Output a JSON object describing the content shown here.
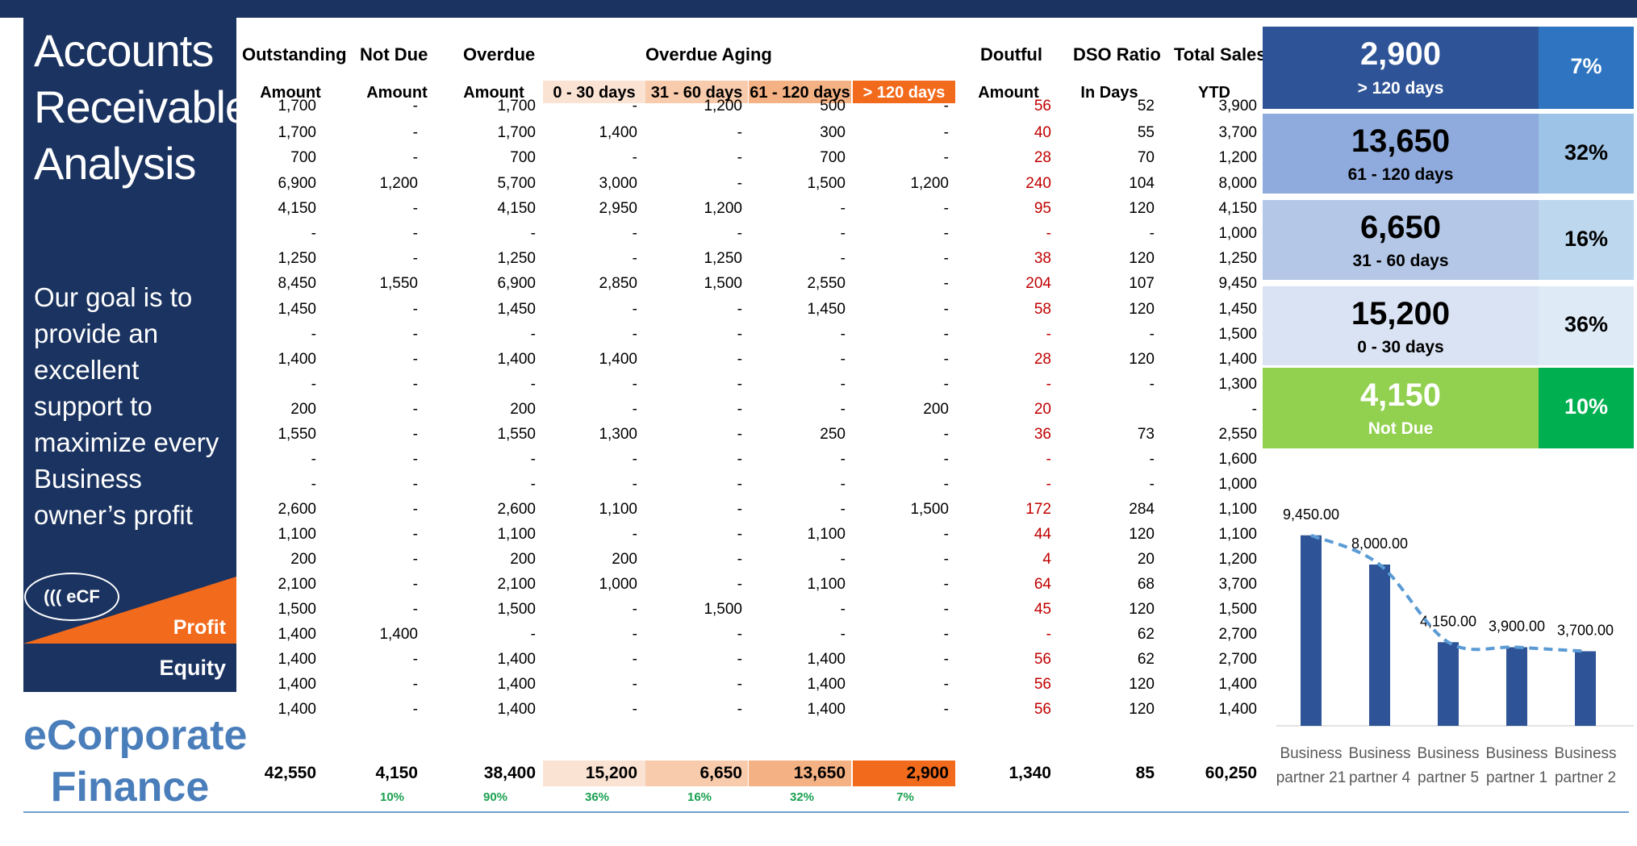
{
  "title_lines": [
    "Accounts",
    "Receivable",
    "Analysis"
  ],
  "goal_lines": [
    "Our goal is to",
    "provide an",
    "excellent",
    "support to",
    "maximize every",
    "Business",
    "owner’s profit"
  ],
  "logo_text": "((( eCF",
  "profit_label": "Profit",
  "equity_label": "Equity",
  "brand_lines": [
    "eCorporate",
    "Finance"
  ],
  "header_top": {
    "outstanding": "Outstanding",
    "not_due": "Not Due",
    "overdue": "Overdue",
    "overdue_aging": "Overdue Aging",
    "doubtful": "Doutful",
    "dso": "DSO Ratio",
    "sales": "Total Sales"
  },
  "header_sub": {
    "outstanding": "Amount",
    "not_due": "Amount",
    "overdue": "Amount",
    "a0": "0 - 30 days",
    "a1": "31 - 60 days",
    "a2": "61 - 120 days",
    "a3": "> 120 days",
    "doubtful": "Amount",
    "dso": "In Days",
    "sales": "YTD"
  },
  "aging_colors": [
    "#fbe3d4",
    "#f8cbad",
    "#f4b183",
    "#f26a1b"
  ],
  "rows": [
    [
      "1,700",
      "-",
      "1,700",
      "-",
      "1,200",
      "500",
      "-",
      "56",
      "52",
      "3,900"
    ],
    [
      "1,700",
      "-",
      "1,700",
      "1,400",
      "-",
      "300",
      "-",
      "40",
      "55",
      "3,700"
    ],
    [
      "700",
      "-",
      "700",
      "-",
      "-",
      "700",
      "-",
      "28",
      "70",
      "1,200"
    ],
    [
      "6,900",
      "1,200",
      "5,700",
      "3,000",
      "-",
      "1,500",
      "1,200",
      "240",
      "104",
      "8,000"
    ],
    [
      "4,150",
      "-",
      "4,150",
      "2,950",
      "1,200",
      "-",
      "-",
      "95",
      "120",
      "4,150"
    ],
    [
      "-",
      "-",
      "-",
      "-",
      "-",
      "-",
      "-",
      "-",
      "-",
      "1,000"
    ],
    [
      "1,250",
      "-",
      "1,250",
      "-",
      "1,250",
      "-",
      "-",
      "38",
      "120",
      "1,250"
    ],
    [
      "8,450",
      "1,550",
      "6,900",
      "2,850",
      "1,500",
      "2,550",
      "-",
      "204",
      "107",
      "9,450"
    ],
    [
      "1,450",
      "-",
      "1,450",
      "-",
      "-",
      "1,450",
      "-",
      "58",
      "120",
      "1,450"
    ],
    [
      "-",
      "-",
      "-",
      "-",
      "-",
      "-",
      "-",
      "-",
      "-",
      "1,500"
    ],
    [
      "1,400",
      "-",
      "1,400",
      "1,400",
      "-",
      "-",
      "-",
      "28",
      "120",
      "1,400"
    ],
    [
      "-",
      "-",
      "-",
      "-",
      "-",
      "-",
      "-",
      "-",
      "-",
      "1,300"
    ],
    [
      "200",
      "-",
      "200",
      "-",
      "-",
      "-",
      "200",
      "20",
      "",
      "-"
    ],
    [
      "1,550",
      "-",
      "1,550",
      "1,300",
      "-",
      "250",
      "-",
      "36",
      "73",
      "2,550"
    ],
    [
      "-",
      "-",
      "-",
      "-",
      "-",
      "-",
      "-",
      "-",
      "-",
      "1,600"
    ],
    [
      "-",
      "-",
      "-",
      "-",
      "-",
      "-",
      "-",
      "-",
      "-",
      "1,000"
    ],
    [
      "2,600",
      "-",
      "2,600",
      "1,100",
      "-",
      "-",
      "1,500",
      "172",
      "284",
      "1,100"
    ],
    [
      "1,100",
      "-",
      "1,100",
      "-",
      "-",
      "1,100",
      "-",
      "44",
      "120",
      "1,100"
    ],
    [
      "200",
      "-",
      "200",
      "200",
      "-",
      "-",
      "-",
      "4",
      "20",
      "1,200"
    ],
    [
      "2,100",
      "-",
      "2,100",
      "1,000",
      "-",
      "1,100",
      "-",
      "64",
      "68",
      "3,700"
    ],
    [
      "1,500",
      "-",
      "1,500",
      "-",
      "1,500",
      "-",
      "-",
      "45",
      "120",
      "1,500"
    ],
    [
      "1,400",
      "1,400",
      "-",
      "-",
      "-",
      "-",
      "-",
      "-",
      "62",
      "2,700"
    ],
    [
      "1,400",
      "-",
      "1,400",
      "-",
      "-",
      "1,400",
      "-",
      "56",
      "62",
      "2,700"
    ],
    [
      "1,400",
      "-",
      "1,400",
      "-",
      "-",
      "1,400",
      "-",
      "56",
      "120",
      "1,400"
    ],
    [
      "1,400",
      "-",
      "1,400",
      "-",
      "-",
      "1,400",
      "-",
      "56",
      "120",
      "1,400"
    ]
  ],
  "totals": [
    "42,550",
    "4,150",
    "38,400",
    "15,200",
    "6,650",
    "13,650",
    "2,900",
    "1,340",
    "85",
    "60,250"
  ],
  "total_pcts": [
    "",
    "10%",
    "90%",
    "36%",
    "16%",
    "32%",
    "7%",
    "",
    "",
    ""
  ],
  "cards": [
    {
      "value": "2,900",
      "label": "> 120 days",
      "pct": "7%",
      "bg": "#2e5497",
      "pct_bg": "#2e74c0",
      "text": "#ffffff"
    },
    {
      "value": "13,650",
      "label": "61 - 120 days",
      "pct": "32%",
      "bg": "#8faadc",
      "pct_bg": "#9dc3e6",
      "text": "#000000"
    },
    {
      "value": "6,650",
      "label": "31 - 60 days",
      "pct": "16%",
      "bg": "#b4c7e7",
      "pct_bg": "#bdd7ee",
      "text": "#000000"
    },
    {
      "value": "15,200",
      "label": "0 - 30 days",
      "pct": "36%",
      "bg": "#dae3f3",
      "pct_bg": "#deebf7",
      "text": "#000000"
    },
    {
      "value": "4,150",
      "label": "Not Due",
      "pct": "10%",
      "bg": "#92d050",
      "pct_bg": "#00b050",
      "text": "#ffffff"
    }
  ],
  "chart_data": {
    "type": "bar",
    "categories": [
      [
        "Business",
        "partner 21"
      ],
      [
        "Business",
        "partner 4"
      ],
      [
        "Business",
        "partner 5"
      ],
      [
        "Business",
        "partner 1"
      ],
      [
        "Business",
        "partner 2"
      ]
    ],
    "values": [
      9450,
      8000,
      4150,
      3900,
      3700
    ],
    "labels": [
      "9,450.00",
      "8,000.00",
      "4,150.00",
      "3,900.00",
      "3,700.00"
    ],
    "ylim": [
      0,
      10000
    ],
    "bar_color": "#2e5497",
    "trend_color": "#5b9bd5",
    "trendline": "dashed smooth curve"
  }
}
